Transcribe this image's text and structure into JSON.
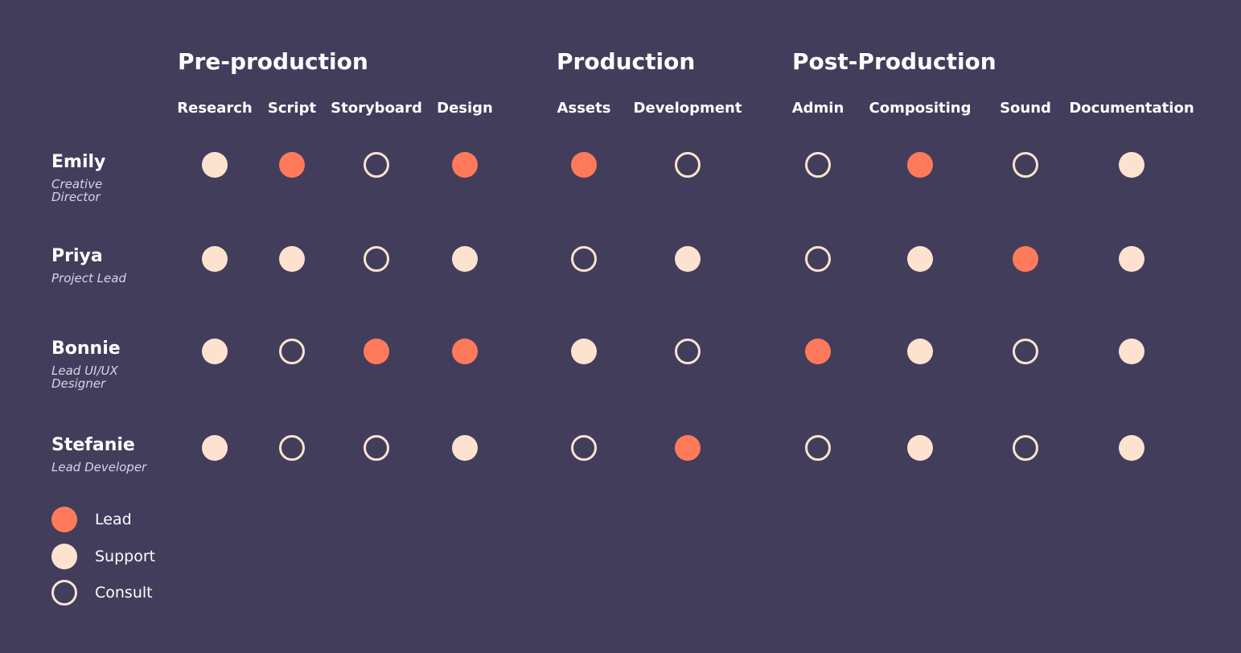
{
  "phases": [
    {
      "title": "Pre-production",
      "tasks": [
        "Research",
        "Script",
        "Storyboard",
        "Design"
      ]
    },
    {
      "title": "Production",
      "tasks": [
        "Assets",
        "Development"
      ]
    },
    {
      "title": "Post-Production",
      "tasks": [
        "Admin",
        "Compositing",
        "Sound",
        "Documentation"
      ]
    }
  ],
  "legend": [
    {
      "label": "Lead",
      "color": "#fe7a5a",
      "style": "filled"
    },
    {
      "label": "Support",
      "color": "#fde3cf",
      "style": "filled"
    },
    {
      "label": "Consult",
      "color": "#fde3cf",
      "style": "ring"
    }
  ],
  "people": [
    {
      "name": "Emily",
      "role": "Creative Director",
      "cells": [
        "Support",
        "Lead",
        "Consult",
        "Lead",
        "Lead",
        "Consult",
        "Consult",
        "Lead",
        "Consult",
        "Support"
      ]
    },
    {
      "name": "Priya",
      "role": "Project Lead",
      "cells": [
        "Support",
        "Support",
        "Consult",
        "Support",
        "Consult",
        "Support",
        "Consult",
        "Support",
        "Lead",
        "Support"
      ]
    },
    {
      "name": "Bonnie",
      "role": "Lead UI/UX Designer",
      "cells": [
        "Support",
        "Consult",
        "Lead",
        "Lead",
        "Support",
        "Consult",
        "Lead",
        "Support",
        "Consult",
        "Support"
      ]
    },
    {
      "name": "Stefanie",
      "role": "Lead Developer",
      "cells": [
        "Support",
        "Consult",
        "Consult",
        "Support",
        "Consult",
        "Lead",
        "Consult",
        "Support",
        "Consult",
        "Support"
      ]
    }
  ]
}
